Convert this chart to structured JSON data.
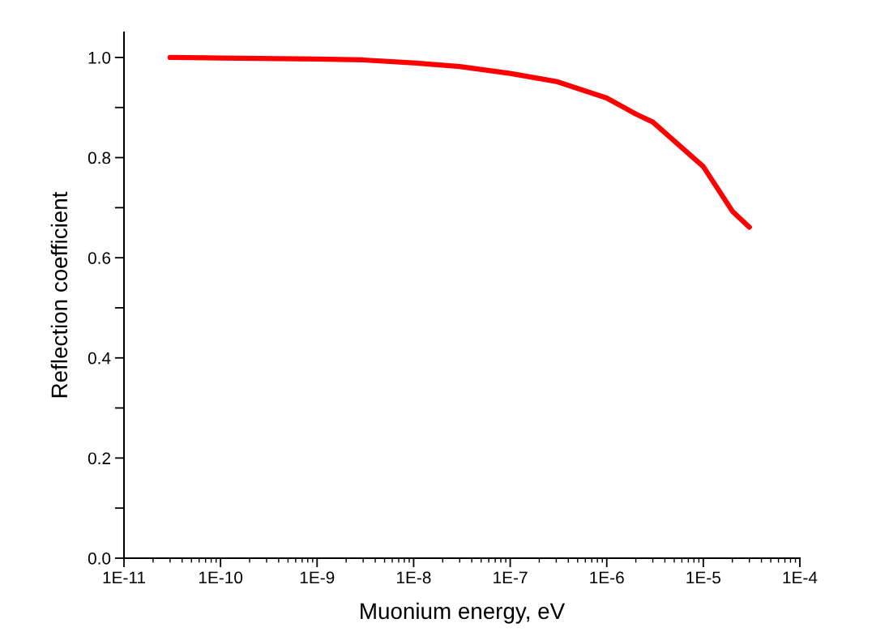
{
  "chart_data": {
    "type": "line",
    "xlabel": "Muonium energy, eV",
    "ylabel": "Reflection coefficient",
    "x": [
      3e-11,
      1e-10,
      1e-09,
      3e-09,
      1e-08,
      3e-08,
      1e-07,
      3e-07,
      1e-06,
      2e-06,
      3e-06,
      1e-05,
      2e-05,
      3e-05
    ],
    "series": [
      {
        "color": "#ff0000",
        "values": [
          1.0,
          0.999,
          0.997,
          0.995,
          0.989,
          0.982,
          0.968,
          0.952,
          0.919,
          0.887,
          0.871,
          0.782,
          0.693,
          0.661
        ]
      }
    ],
    "log": "x",
    "xlim": [
      1e-11,
      0.0001
    ],
    "xticks": [
      {
        "value": 1e-11,
        "label": "1E-11"
      },
      {
        "value": 1e-10,
        "label": "1E-10"
      },
      {
        "value": 1e-09,
        "label": "1E-9"
      },
      {
        "value": 1e-08,
        "label": "1E-8"
      },
      {
        "value": 1e-07,
        "label": "1E-7"
      },
      {
        "value": 1e-06,
        "label": "1E-6"
      },
      {
        "value": 1e-05,
        "label": "1E-5"
      },
      {
        "value": 0.0001,
        "label": "1E-4"
      }
    ],
    "ylim": [
      0.0,
      1.05
    ],
    "yticks": [
      {
        "value": 0.0,
        "label": "0.0"
      },
      {
        "value": 0.1,
        "label": null
      },
      {
        "value": 0.2,
        "label": "0.2"
      },
      {
        "value": 0.3,
        "label": null
      },
      {
        "value": 0.4,
        "label": "0.4"
      },
      {
        "value": 0.5,
        "label": null
      },
      {
        "value": 0.6,
        "label": "0.6"
      },
      {
        "value": 0.7,
        "label": null
      },
      {
        "value": 0.8,
        "label": "0.8"
      },
      {
        "value": 0.9,
        "label": null
      },
      {
        "value": 1.0,
        "label": "1.0"
      }
    ],
    "grid": false,
    "line_style": "solid"
  }
}
